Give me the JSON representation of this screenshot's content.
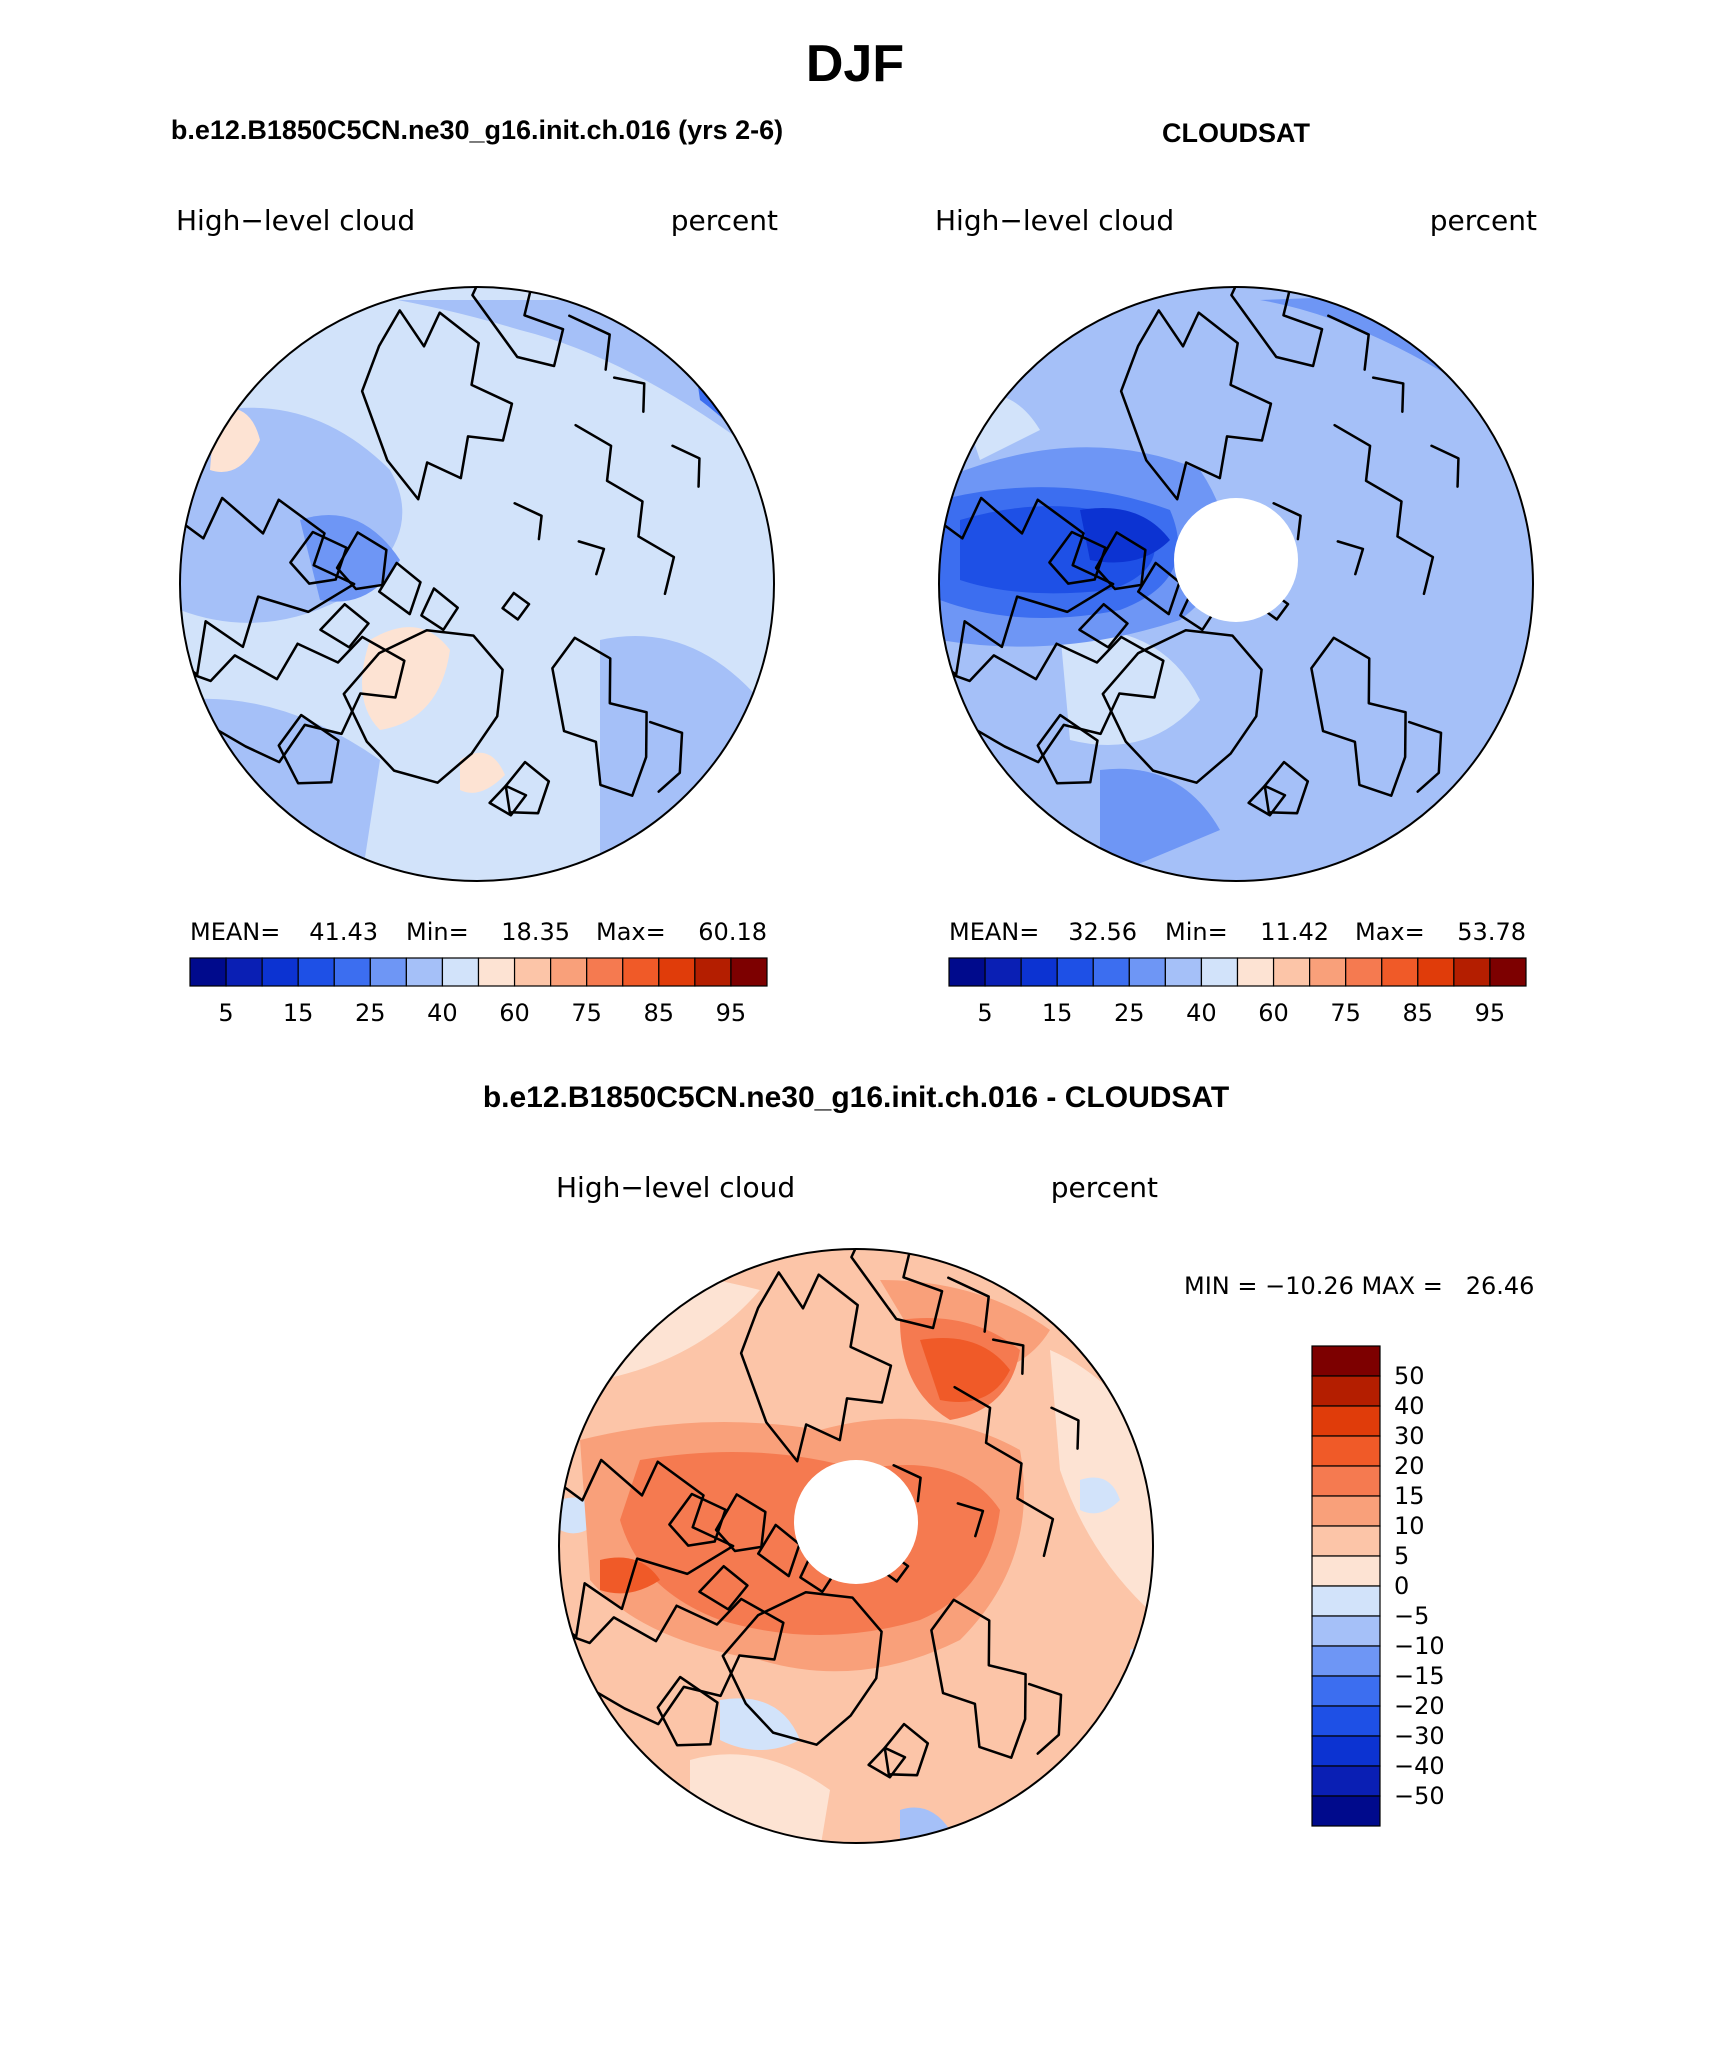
{
  "title": "DJF",
  "panels": [
    {
      "heading": "b.e12.B1850C5CN.ne30_g16.init.ch.016 (yrs 2-6)",
      "left_label": "High−level cloud",
      "right_label": "percent",
      "stats": {
        "mean_label": "MEAN=",
        "mean": "41.43",
        "min_label": "Min=",
        "min": "18.35",
        "max_label": "Max=",
        "max": "60.18"
      }
    },
    {
      "heading": "CLOUDSAT",
      "left_label": "High−level cloud",
      "right_label": "percent",
      "stats": {
        "mean_label": "MEAN=",
        "mean": "32.56",
        "min_label": "Min=",
        "min": "11.42",
        "max_label": "Max=",
        "max": "53.78"
      }
    },
    {
      "heading": "b.e12.B1850C5CN.ne30_g16.init.ch.016 - CLOUDSAT",
      "left_label": "High−level cloud",
      "right_label": "percent",
      "stats_text": "MIN = −10.26 MAX =   26.46"
    }
  ],
  "colorbars": {
    "horizontal": {
      "colors": [
        "#000a8c",
        "#0a1fb4",
        "#0c33d2",
        "#1e50e6",
        "#3c6ef0",
        "#6e96f5",
        "#a5c0f8",
        "#d2e3fa",
        "#fde3d3",
        "#fcc5a8",
        "#f9a07a",
        "#f57a50",
        "#f05a28",
        "#e03c0a",
        "#b41e00",
        "#7d0000"
      ],
      "tick_labels": [
        "5",
        "15",
        "25",
        "40",
        "60",
        "75",
        "85",
        "95"
      ]
    },
    "vertical": {
      "colors_top_to_bottom": [
        "#7d0000",
        "#b41e00",
        "#e03c0a",
        "#f05a28",
        "#f57a50",
        "#f9a07a",
        "#fcc5a8",
        "#fde3d3",
        "#d2e3fa",
        "#a5c0f8",
        "#6e96f5",
        "#3c6ef0",
        "#1e50e6",
        "#0c33d2",
        "#0a1fb4",
        "#000a8c"
      ],
      "tick_labels": [
        "50",
        "40",
        "30",
        "20",
        "15",
        "10",
        "5",
        "0",
        "−5",
        "−10",
        "−15",
        "−20",
        "−30",
        "−40",
        "−50"
      ]
    }
  },
  "map_colors": {
    "ctrl": {
      "base": "#d2e3fa",
      "mid": "#a5c0f8",
      "dark": "#6e96f5",
      "deep": "#3c6ef0",
      "warm": "#fde3d3"
    },
    "obs": {
      "base": "#a5c0f8",
      "mid": "#6e96f5",
      "dark": "#3c6ef0",
      "deep": "#1e50e6",
      "darkest": "#0c33d2",
      "light": "#d2e3fa"
    },
    "diff": {
      "base": "#fcc5a8",
      "light": "#fde3d3",
      "mid": "#f9a07a",
      "dark": "#f57a50",
      "deep": "#f05a28",
      "cool": "#d2e3fa",
      "cool2": "#a5c0f8"
    }
  }
}
